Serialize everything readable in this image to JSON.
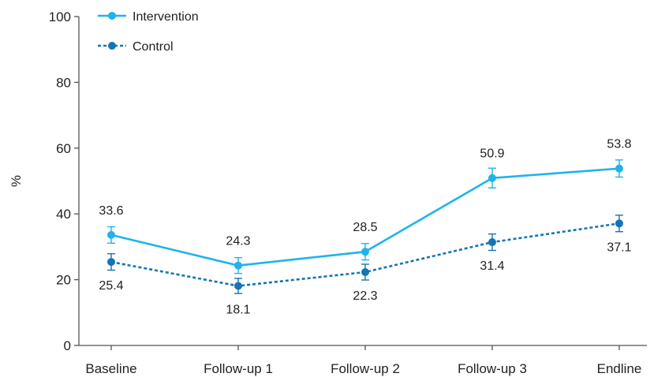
{
  "chart_data": {
    "type": "line",
    "title": "",
    "xlabel": "",
    "ylabel": "%",
    "ylim": [
      0,
      100
    ],
    "yticks": [
      0,
      20,
      40,
      60,
      80,
      100
    ],
    "categories": [
      "Baseline",
      "Follow-up 1",
      "Follow-up 2",
      "Follow-up 3",
      "Endline"
    ],
    "legend_position": "top-left",
    "series": [
      {
        "name": "Intervention",
        "values": [
          33.6,
          24.3,
          28.5,
          50.9,
          53.8
        ],
        "error": [
          2.5,
          2.4,
          2.5,
          3.0,
          2.6
        ],
        "labels": [
          "33.6",
          "24.3",
          "28.5",
          "50.9",
          "53.8"
        ],
        "label_side": [
          "above",
          "above",
          "above",
          "above",
          "above"
        ],
        "color": "#1fb3ea",
        "line_style": "solid"
      },
      {
        "name": "Control",
        "values": [
          25.4,
          18.1,
          22.3,
          31.4,
          37.1
        ],
        "error": [
          2.5,
          2.3,
          2.4,
          2.5,
          2.5
        ],
        "labels": [
          "25.4",
          "18.1",
          "22.3",
          "31.4",
          "37.1"
        ],
        "label_side": [
          "below",
          "below",
          "below",
          "below",
          "below"
        ],
        "color": "#1475b5",
        "line_style": "dotted"
      }
    ],
    "colors": {
      "axis": "#555555"
    }
  }
}
